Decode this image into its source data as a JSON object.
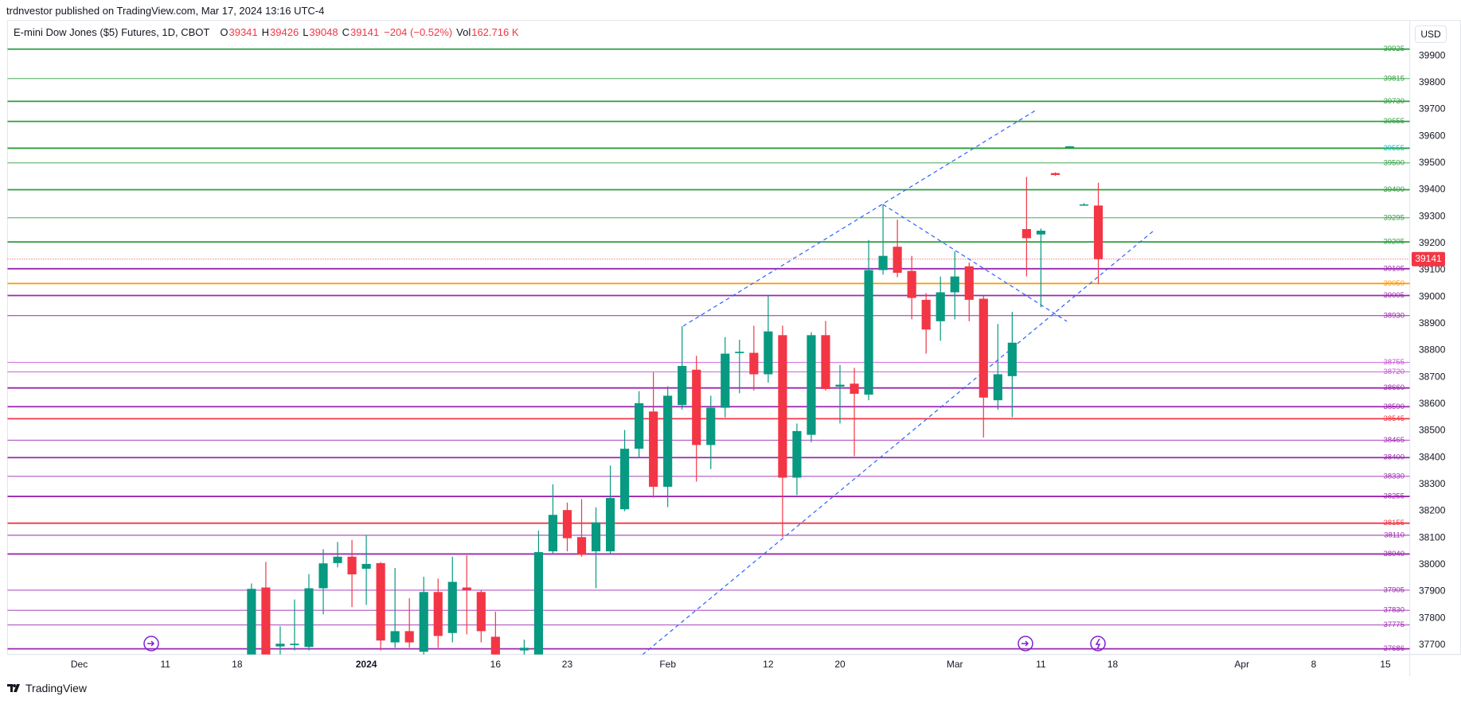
{
  "header": {
    "published": "trdnvestor published on TradingView.com, Mar 17, 2024 13:16 UTC-4",
    "currency": "USD"
  },
  "footer": "TradingView",
  "chart_data": {
    "type": "candlestick",
    "title": "E-mini Dow Jones ($5) Futures, 1D, CBOT",
    "legend": {
      "open_label": "O",
      "open": 39341,
      "high_label": "H",
      "high": 39426,
      "low_label": "L",
      "low": 39048,
      "close_label": "C",
      "close": 39141,
      "change": "−204 (−0.52%)",
      "volume_label": "Vol",
      "volume": "162.716 K"
    },
    "up_color": "#089981",
    "down_color": "#f23645",
    "x": [
      0,
      1,
      2,
      3,
      4,
      5,
      6,
      7,
      8,
      9,
      10,
      11,
      12,
      13,
      14,
      15,
      16,
      17,
      19,
      20,
      21,
      22,
      23,
      24,
      25,
      26,
      27,
      28,
      29,
      30,
      31,
      32,
      33,
      34,
      35,
      36,
      37,
      38,
      39,
      40,
      41,
      42,
      43,
      44,
      45,
      46,
      47,
      48,
      49,
      50,
      51,
      52,
      53,
      54,
      55,
      56,
      57,
      58,
      59
    ],
    "open": [
      37620,
      37915,
      37695,
      37700,
      37693,
      37912,
      38006,
      38030,
      37985,
      38006,
      37710,
      37752,
      37675,
      37898,
      37745,
      37915,
      37898,
      37731,
      37680,
      37640,
      38050,
      38204,
      38103,
      38050,
      38050,
      38207,
      38433,
      38572,
      38291,
      38596,
      38728,
      38447,
      38586,
      38790,
      38791,
      38711,
      38857,
      38325,
      38485,
      38857,
      38665,
      38676,
      38635,
      39100,
      39187,
      39097,
      38989,
      38909,
      39017,
      39114,
      38993,
      38614,
      38704,
      39253,
      39233,
      39462,
      39556,
      39342,
      39341
    ],
    "high": [
      37930,
      38010,
      37770,
      37870,
      37965,
      38058,
      38085,
      38092,
      38110,
      38010,
      37988,
      37875,
      37955,
      37948,
      38030,
      38035,
      37905,
      37825,
      37720,
      38127,
      38300,
      38232,
      38245,
      38214,
      38370,
      38503,
      38648,
      38718,
      38666,
      38890,
      38780,
      38631,
      38850,
      38840,
      38892,
      39003,
      38892,
      38527,
      38868,
      38910,
      38746,
      38735,
      39212,
      39344,
      39288,
      39153,
      39014,
      39076,
      39170,
      39128,
      39003,
      38899,
      38944,
      39448,
      39255,
      39465,
      39563,
      39350,
      39426
    ],
    "low": [
      37600,
      37600,
      37660,
      37680,
      37680,
      37815,
      37990,
      37842,
      37850,
      37680,
      37690,
      37690,
      37660,
      37690,
      37710,
      37740,
      37710,
      37640,
      37650,
      37630,
      38040,
      38050,
      38030,
      37912,
      38040,
      38200,
      38400,
      38250,
      38215,
      38580,
      38310,
      38357,
      38550,
      38640,
      38650,
      38680,
      38103,
      38260,
      38457,
      38650,
      38527,
      38405,
      38614,
      39083,
      39073,
      38916,
      38788,
      38836,
      38916,
      38909,
      38475,
      38579,
      38551,
      39076,
      38961,
      39452,
      39555,
      39340,
      39048
    ],
    "close": [
      37910,
      37640,
      37705,
      37705,
      37912,
      38005,
      38030,
      37964,
      38003,
      37717,
      37752,
      37710,
      37898,
      37734,
      37936,
      37906,
      37752,
      37660,
      37690,
      38047,
      38186,
      38099,
      38037,
      38158,
      38249,
      38433,
      38603,
      38291,
      38631,
      38742,
      38447,
      38586,
      38788,
      38795,
      38711,
      38871,
      38325,
      38499,
      38857,
      38656,
      38672,
      38638,
      39100,
      39153,
      39090,
      38996,
      38878,
      39017,
      39076,
      38989,
      38624,
      38711,
      38829,
      39219,
      39247,
      39455,
      39562,
      39345,
      39141
    ],
    "xlim": [
      -17,
      80.7
    ],
    "xticks": [
      {
        "value": -12,
        "label": "Dec"
      },
      {
        "value": -6,
        "label": "11"
      },
      {
        "value": -1,
        "label": "18"
      },
      {
        "value": 8,
        "label": "2024"
      },
      {
        "value": 17,
        "label": "16"
      },
      {
        "value": 22,
        "label": "23"
      },
      {
        "value": 29,
        "label": "Feb"
      },
      {
        "value": 36,
        "label": "12"
      },
      {
        "value": 41,
        "label": "20"
      },
      {
        "value": 49,
        "label": "Mar"
      },
      {
        "value": 55,
        "label": "11"
      },
      {
        "value": 60,
        "label": "18"
      },
      {
        "value": 69,
        "label": "Apr"
      },
      {
        "value": 74,
        "label": "8"
      },
      {
        "value": 79,
        "label": "15"
      }
    ],
    "ylim": [
      37665,
      40032
    ],
    "yticks": [
      37700,
      37800,
      37900,
      38000,
      38100,
      38200,
      38300,
      38400,
      38500,
      38600,
      38700,
      38800,
      38900,
      39000,
      39100,
      39200,
      39300,
      39400,
      39500,
      39600,
      39700,
      39800,
      39900
    ],
    "grid": false,
    "last_price": 39141,
    "last_price_color": "#f23645",
    "levels": [
      {
        "value": 39925,
        "color": "#2e9e3e",
        "width": 2
      },
      {
        "value": 39815,
        "color": "#2e9e3e",
        "width": 1
      },
      {
        "value": 39730,
        "color": "#2e9e3e",
        "width": 2
      },
      {
        "value": 39655,
        "color": "#2e9e3e",
        "width": 2
      },
      {
        "value": 39555,
        "color": "#2e9e3e",
        "width": 2,
        "label_color": "#00bcd4"
      },
      {
        "value": 39500,
        "color": "#2e9e3e",
        "width": 1
      },
      {
        "value": 39400,
        "color": "#2e9e3e",
        "width": 2
      },
      {
        "value": 39295,
        "color": "#2e9e3e",
        "width": 1
      },
      {
        "value": 39205,
        "color": "#2e9e3e",
        "width": 2
      },
      {
        "value": 39105,
        "color": "#9c27b0",
        "width": 2
      },
      {
        "value": 39050,
        "color": "#ff9800",
        "width": 2
      },
      {
        "value": 39005,
        "color": "#9c27b0",
        "width": 2
      },
      {
        "value": 38930,
        "color": "#9c27b0",
        "width": 1
      },
      {
        "value": 38755,
        "color": "#c74fd6",
        "width": 1
      },
      {
        "value": 38720,
        "color": "#c74fd6",
        "width": 1
      },
      {
        "value": 38660,
        "color": "#9c27b0",
        "width": 2
      },
      {
        "value": 38590,
        "color": "#9c27b0",
        "width": 2
      },
      {
        "value": 38545,
        "color": "#f23645",
        "width": 2
      },
      {
        "value": 38465,
        "color": "#9c27b0",
        "width": 1
      },
      {
        "value": 38400,
        "color": "#9c27b0",
        "width": 2
      },
      {
        "value": 38330,
        "color": "#9c27b0",
        "width": 1
      },
      {
        "value": 38255,
        "color": "#9c27b0",
        "width": 2
      },
      {
        "value": 38155,
        "color": "#f23645",
        "width": 2
      },
      {
        "value": 38110,
        "color": "#9c27b0",
        "width": 1
      },
      {
        "value": 38040,
        "color": "#9c27b0",
        "width": 2
      },
      {
        "value": 37905,
        "color": "#9c27b0",
        "width": 1
      },
      {
        "value": 37830,
        "color": "#9c27b0",
        "width": 1
      },
      {
        "value": 37775,
        "color": "#9c27b0",
        "width": 1
      },
      {
        "value": 37686,
        "color": "#9c27b0",
        "width": 2
      }
    ]
  }
}
